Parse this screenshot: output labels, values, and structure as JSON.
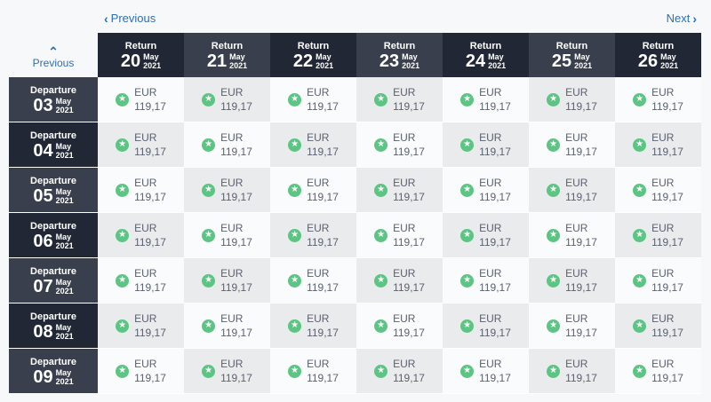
{
  "nav": {
    "previous_label": "Previous",
    "next_label": "Next",
    "up_previous_label": "Previous"
  },
  "colors": {
    "accent": "#2f6fb0",
    "header_dark": "#222736",
    "header_light": "#3a3f4d",
    "badge_green": "#5cc583"
  },
  "icons": {
    "previous": "chevron-left-icon",
    "next": "chevron-right-icon",
    "up": "chevron-up-icon",
    "badge": "star-icon"
  },
  "returns": [
    {
      "label": "Return",
      "day": "20",
      "month": "May",
      "year": "2021"
    },
    {
      "label": "Return",
      "day": "21",
      "month": "May",
      "year": "2021"
    },
    {
      "label": "Return",
      "day": "22",
      "month": "May",
      "year": "2021"
    },
    {
      "label": "Return",
      "day": "23",
      "month": "May",
      "year": "2021"
    },
    {
      "label": "Return",
      "day": "24",
      "month": "May",
      "year": "2021"
    },
    {
      "label": "Return",
      "day": "25",
      "month": "May",
      "year": "2021"
    },
    {
      "label": "Return",
      "day": "26",
      "month": "May",
      "year": "2021"
    }
  ],
  "departures": [
    {
      "label": "Departure",
      "day": "03",
      "month": "May",
      "year": "2021"
    },
    {
      "label": "Departure",
      "day": "04",
      "month": "May",
      "year": "2021"
    },
    {
      "label": "Departure",
      "day": "05",
      "month": "May",
      "year": "2021"
    },
    {
      "label": "Departure",
      "day": "06",
      "month": "May",
      "year": "2021"
    },
    {
      "label": "Departure",
      "day": "07",
      "month": "May",
      "year": "2021"
    },
    {
      "label": "Departure",
      "day": "08",
      "month": "May",
      "year": "2021"
    },
    {
      "label": "Departure",
      "day": "09",
      "month": "May",
      "year": "2021"
    }
  ],
  "prices": [
    [
      {
        "currency": "EUR",
        "amount": "119,17"
      },
      {
        "currency": "EUR",
        "amount": "119,17"
      },
      {
        "currency": "EUR",
        "amount": "119,17"
      },
      {
        "currency": "EUR",
        "amount": "119,17"
      },
      {
        "currency": "EUR",
        "amount": "119,17"
      },
      {
        "currency": "EUR",
        "amount": "119,17"
      },
      {
        "currency": "EUR",
        "amount": "119,17"
      }
    ],
    [
      {
        "currency": "EUR",
        "amount": "119,17"
      },
      {
        "currency": "EUR",
        "amount": "119,17"
      },
      {
        "currency": "EUR",
        "amount": "119,17"
      },
      {
        "currency": "EUR",
        "amount": "119,17"
      },
      {
        "currency": "EUR",
        "amount": "119,17"
      },
      {
        "currency": "EUR",
        "amount": "119,17"
      },
      {
        "currency": "EUR",
        "amount": "119,17"
      }
    ],
    [
      {
        "currency": "EUR",
        "amount": "119,17"
      },
      {
        "currency": "EUR",
        "amount": "119,17"
      },
      {
        "currency": "EUR",
        "amount": "119,17"
      },
      {
        "currency": "EUR",
        "amount": "119,17"
      },
      {
        "currency": "EUR",
        "amount": "119,17"
      },
      {
        "currency": "EUR",
        "amount": "119,17"
      },
      {
        "currency": "EUR",
        "amount": "119,17"
      }
    ],
    [
      {
        "currency": "EUR",
        "amount": "119,17"
      },
      {
        "currency": "EUR",
        "amount": "119,17"
      },
      {
        "currency": "EUR",
        "amount": "119,17"
      },
      {
        "currency": "EUR",
        "amount": "119,17"
      },
      {
        "currency": "EUR",
        "amount": "119,17"
      },
      {
        "currency": "EUR",
        "amount": "119,17"
      },
      {
        "currency": "EUR",
        "amount": "119,17"
      }
    ],
    [
      {
        "currency": "EUR",
        "amount": "119,17"
      },
      {
        "currency": "EUR",
        "amount": "119,17"
      },
      {
        "currency": "EUR",
        "amount": "119,17"
      },
      {
        "currency": "EUR",
        "amount": "119,17"
      },
      {
        "currency": "EUR",
        "amount": "119,17"
      },
      {
        "currency": "EUR",
        "amount": "119,17"
      },
      {
        "currency": "EUR",
        "amount": "119,17"
      }
    ],
    [
      {
        "currency": "EUR",
        "amount": "119,17"
      },
      {
        "currency": "EUR",
        "amount": "119,17"
      },
      {
        "currency": "EUR",
        "amount": "119,17"
      },
      {
        "currency": "EUR",
        "amount": "119,17"
      },
      {
        "currency": "EUR",
        "amount": "119,17"
      },
      {
        "currency": "EUR",
        "amount": "119,17"
      },
      {
        "currency": "EUR",
        "amount": "119,17"
      }
    ],
    [
      {
        "currency": "EUR",
        "amount": "119,17"
      },
      {
        "currency": "EUR",
        "amount": "119,17"
      },
      {
        "currency": "EUR",
        "amount": "119,17"
      },
      {
        "currency": "EUR",
        "amount": "119,17"
      },
      {
        "currency": "EUR",
        "amount": "119,17"
      },
      {
        "currency": "EUR",
        "amount": "119,17"
      },
      {
        "currency": "EUR",
        "amount": "119,17"
      }
    ]
  ]
}
